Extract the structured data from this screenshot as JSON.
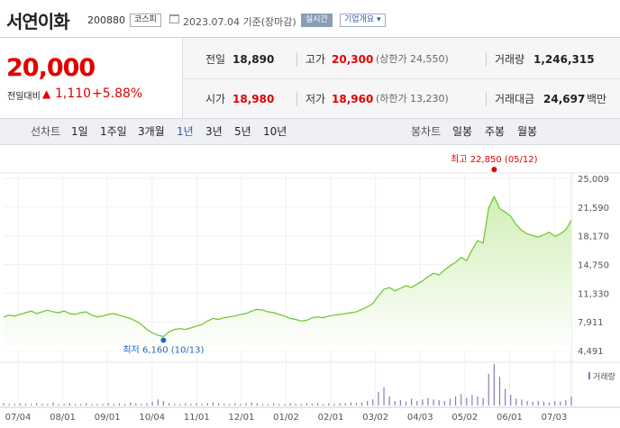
{
  "header": {
    "name": "서연이화",
    "code": "200880",
    "market": "코스피",
    "date": "2023.07.04 기준(장마감)",
    "realtime": "실시간",
    "info": "기업개요"
  },
  "price": {
    "current": "20,000",
    "change_label": "전일대비",
    "change_arrow": "▲",
    "change": "1,110",
    "percent": "+5.88%"
  },
  "stats": {
    "prev_label": "전일",
    "prev": "18,890",
    "high_label": "고가",
    "high": "20,300",
    "upper_label": "(상한가",
    "upper": "24,550)",
    "volume_label": "거래량",
    "volume": "1,246,315",
    "open_label": "시가",
    "open": "18,980",
    "low_label": "저가",
    "low": "18,960",
    "lower_label": "(하한가",
    "lower": "13,230)",
    "amount_label": "거래대금",
    "amount": "24,697",
    "amount_unit": "백만"
  },
  "tabs": {
    "line_label": "선차트",
    "line": [
      "1일",
      "1주일",
      "3개월",
      "1년",
      "3년",
      "5년",
      "10년"
    ],
    "line_selected": "1년",
    "candle_label": "봉차트",
    "candle": [
      "일봉",
      "주봉",
      "월봉"
    ]
  },
  "colors": {
    "red": "#e00000",
    "line": "#6bc42a",
    "area_top": "#d9f2c2",
    "volume": "#8d79b8",
    "low_marker": "#1f68c9"
  },
  "chart_data": {
    "type": "area",
    "y_ticks": [
      "25,009",
      "21,590",
      "18,170",
      "14,750",
      "11,330",
      "7,911",
      "4,491"
    ],
    "y_range": [
      4491,
      25009
    ],
    "x_ticks": [
      "07/04",
      "08/01",
      "09/01",
      "10/04",
      "11/01",
      "12/01",
      "01/02",
      "02/01",
      "03/02",
      "04/03",
      "05/02",
      "06/01",
      "07/03"
    ],
    "high_label": "최고 22,850 (05/12)",
    "low_label": "최저 6,160 (10/13)",
    "volume_legend": "거래량",
    "series": [
      {
        "values": [
          8500,
          8700,
          8600,
          8800,
          9000,
          9200,
          8900,
          9100,
          9300,
          9100,
          9000,
          9200,
          8900,
          8800,
          9000,
          9100,
          8700,
          8500,
          8600,
          8800,
          8900,
          8700,
          8500,
          8300,
          8000,
          7600,
          7000,
          6600,
          6300,
          6160,
          6700,
          7000,
          7100,
          7000,
          7200,
          7400,
          7600,
          8000,
          8300,
          8200,
          8400,
          8500,
          8600,
          8800,
          8900,
          9200,
          9400,
          9300,
          9100,
          9000,
          8800,
          8600,
          8300,
          8200,
          8000,
          8100,
          8400,
          8500,
          8400,
          8600,
          8700,
          8800,
          8900,
          9000,
          9100,
          9400,
          9700,
          10100,
          11000,
          11800,
          12000,
          11600,
          11900,
          12200,
          12000,
          12400,
          12800,
          13300,
          13700,
          13500,
          14100,
          14600,
          15000,
          15600,
          15200,
          16500,
          17600,
          17300,
          21500,
          22850,
          21400,
          21000,
          20500,
          19500,
          18800,
          18400,
          18200,
          18000,
          18300,
          18600,
          18100,
          18400,
          18900,
          20000
        ]
      }
    ],
    "volume": [
      3,
      2,
      2,
      3,
      2,
      2,
      3,
      2,
      2,
      4,
      2,
      2,
      3,
      2,
      2,
      3,
      2,
      2,
      2,
      3,
      2,
      3,
      2,
      4,
      3,
      2,
      3,
      5,
      8,
      6,
      3,
      2,
      2,
      3,
      2,
      3,
      2,
      3,
      4,
      3,
      2,
      2,
      3,
      2,
      3,
      4,
      3,
      2,
      2,
      3,
      2,
      2,
      3,
      2,
      2,
      3,
      2,
      3,
      2,
      3,
      2,
      3,
      3,
      4,
      3,
      4,
      6,
      8,
      18,
      24,
      12,
      6,
      7,
      5,
      9,
      6,
      8,
      10,
      8,
      7,
      6,
      9,
      12,
      15,
      10,
      14,
      12,
      10,
      42,
      55,
      38,
      22,
      14,
      9,
      8,
      6,
      5,
      6,
      5,
      4,
      6,
      5,
      7,
      12
    ]
  }
}
